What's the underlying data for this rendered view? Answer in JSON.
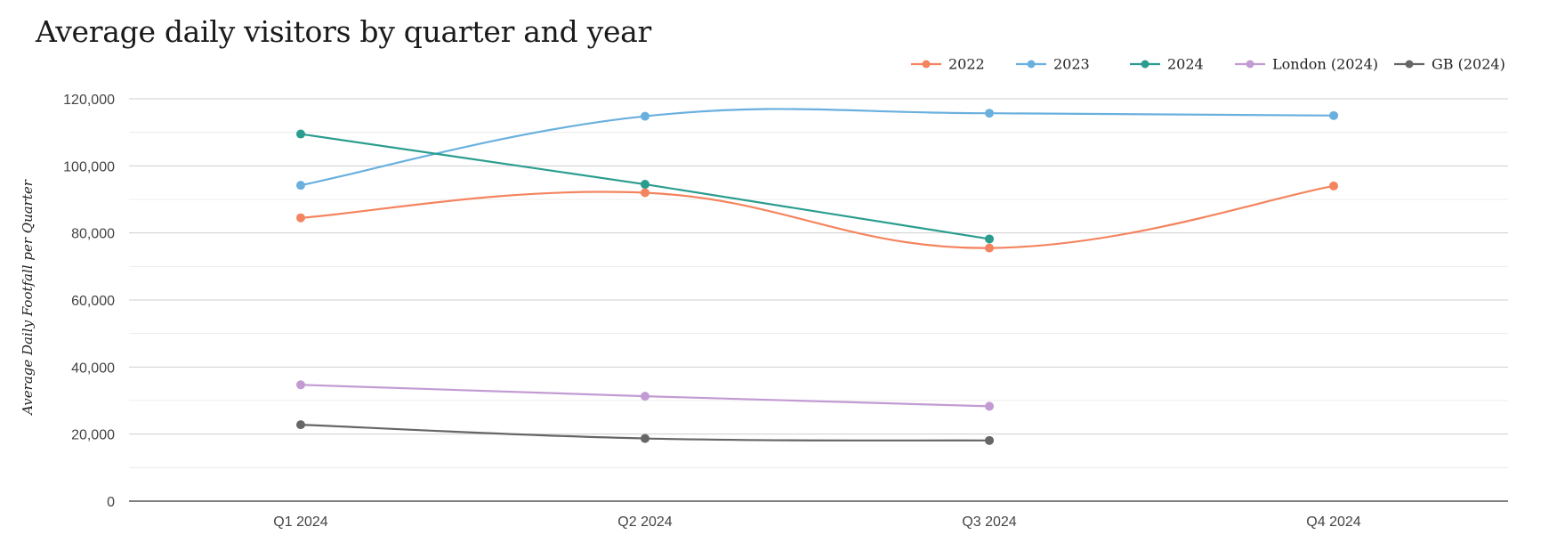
{
  "chart_data": {
    "type": "line",
    "title": "Average daily visitors by quarter and year",
    "xlabel": "",
    "ylabel": "Average Daily Footfall per Quarter",
    "categories": [
      "Q1 2024",
      "Q2 2024",
      "Q3 2024",
      "Q4 2024"
    ],
    "ylim": [
      0,
      120000
    ],
    "yticks": [
      "0",
      "20,000",
      "40,000",
      "60,000",
      "80,000",
      "100,000",
      "120,000"
    ],
    "legend_position": "top-right",
    "grid": true,
    "series": [
      {
        "name": "2022",
        "color": "#f4845f",
        "values": [
          84500,
          92000,
          75500,
          94000
        ]
      },
      {
        "name": "2023",
        "color": "#6ab0de",
        "values": [
          94200,
          114800,
          115700,
          115000
        ]
      },
      {
        "name": "2024",
        "color": "#2a9d8f",
        "values": [
          109500,
          94500,
          78200,
          null
        ]
      },
      {
        "name": "London (2024)",
        "color": "#c39bd3",
        "values": [
          34700,
          31300,
          28300,
          null
        ]
      },
      {
        "name": "GB (2024)",
        "color": "#666666",
        "values": [
          22800,
          18700,
          18100,
          null
        ]
      }
    ]
  }
}
